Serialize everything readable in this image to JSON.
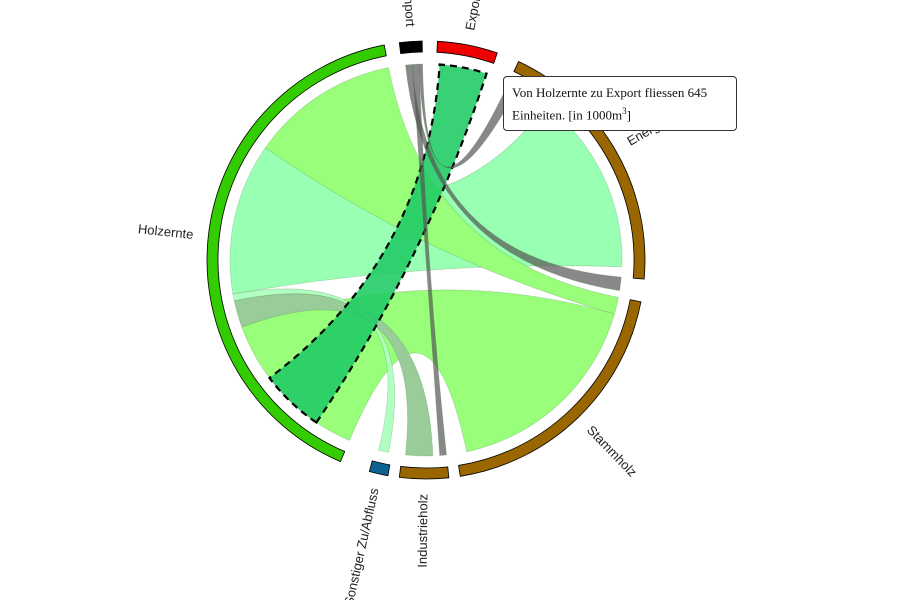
{
  "chart_data": {
    "type": "chord",
    "unit": "[in 1000m³]",
    "groups": [
      {
        "name": "Import",
        "color": "#000000",
        "start": -7,
        "end": -1
      },
      {
        "name": "Export",
        "color": "#ee0000",
        "start": 3,
        "end": 19
      },
      {
        "name": "Energieholz",
        "color": "#996600",
        "start": 25,
        "end": 95
      },
      {
        "name": "Stammholz",
        "color": "#996600",
        "start": 101,
        "end": 171
      },
      {
        "name": "Industrieholz",
        "color": "#996600",
        "start": 174,
        "end": 187
      },
      {
        "name": "Sonstiger Zu/Abfluss",
        "color": "#0e6291",
        "start": 190,
        "end": 195
      },
      {
        "name": "Holzernte",
        "color": "#33cc00",
        "start": 203,
        "end": 349
      }
    ],
    "chords": [
      {
        "source": "Holzernte",
        "target": "Stammholz",
        "s": [
          203,
          250
        ],
        "t": [
          106,
          168
        ],
        "color": "#99ff7a",
        "opacity": 1
      },
      {
        "source": "Holzernte",
        "target": "Energieholz",
        "s": [
          260,
          305
        ],
        "t": [
          38,
          92
        ],
        "color": "#99ffb2",
        "opacity": 1
      },
      {
        "source": "Holzernte",
        "target": "Industrieholz",
        "s": [
          250,
          258
        ],
        "t": [
          178,
          186
        ],
        "color": "#99cc99",
        "opacity": 1
      },
      {
        "source": "Holzernte",
        "target": "Sonstiger Zu/Abfluss",
        "s": [
          258,
          260
        ],
        "t": [
          191,
          194
        ],
        "color": "#b2ffc2",
        "opacity": 1
      },
      {
        "source": "Holzernte",
        "target": "Stammholz",
        "s": [
          305,
          349
        ],
        "t": [
          101,
          106
        ],
        "color": "#99ff7a",
        "opacity": 1
      },
      {
        "source": "Holzernte",
        "target": "Export",
        "s": [
          214,
          233
        ],
        "t": [
          4,
          18
        ],
        "color": "#22cc66",
        "opacity": 0.9,
        "highlight": true
      },
      {
        "source": "Import",
        "target": "Energieholz",
        "s": [
          -6,
          -4
        ],
        "t": [
          95,
          99
        ],
        "color": "#555555",
        "opacity": 0.7
      },
      {
        "source": "Import",
        "target": "Industrieholz",
        "s": [
          -4,
          -2
        ],
        "t": [
          174,
          176
        ],
        "color": "#555555",
        "opacity": 0.7
      },
      {
        "source": "Import",
        "target": "Export",
        "s": [
          -2,
          -1
        ],
        "t": [
          25,
          28
        ],
        "color": "#555555",
        "opacity": 0.7
      }
    ]
  },
  "tooltip": {
    "line1": "Von Holzernte zu Export fliessen 645",
    "line2_prefix": "Einheiten. [in 1000m",
    "line2_sup": "3",
    "line2_suffix": "]"
  }
}
